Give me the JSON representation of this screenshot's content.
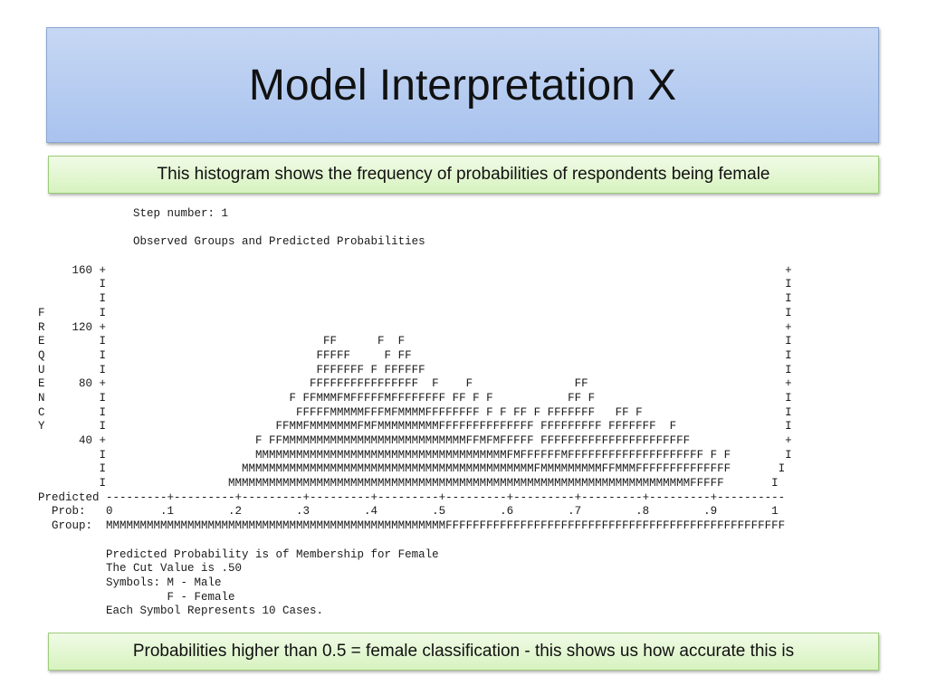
{
  "slide": {
    "title": "Model Interpretation X",
    "top_note": "This histogram shows the frequency of probabilities of respondents being female",
    "bottom_note": "Probabilities higher than 0.5 = female classification - this shows us how accurate this is"
  },
  "output": {
    "lines": [
      "              Step number: 1",
      "",
      "              Observed Groups and Predicted Probabilities",
      "",
      "     160 +                                                                                                    +",
      "         I                                                                                                    I",
      "         I                                                                                                    I",
      "F        I                                                                                                    I",
      "R    120 +                                                                                                    +",
      "E        I                                FF      F  F                                                        I",
      "Q        I                               FFFFF     F FF                                                       I",
      "U        I                               FFFFFFF F FFFFFF                                                     I",
      "E     80 +                              FFFFFFFFFFFFFFFF  F    F               FF                             +",
      "N        I                           F FFMMMFMFFFFFMFFFFFFFF FF F F           FF F                            I",
      "C        I                            FFFFFMMMMMFFFMFMMMMFFFFFFFF F F FF F FFFFFFF   FF F                     I",
      "Y        I                         FFMMFMMMMMMMFMFMMMMMMMMMFFFFFFFFFFFFFF FFFFFFFFF FFFFFFF  F                I",
      "      40 +                      F FFMMMMMMMMMMMMMMMMMMMMMMMMMMMFFMFMFFFFF FFFFFFFFFFFFFFFFFFFFFF              +",
      "         I                      MMMMMMMMMMMMMMMMMMMMMMMMMMMMMMMMMMMMMFMFFFFFFMFFFFFFFFFFFFFFFFFFFF F F        I",
      "         I                    MMMMMMMMMMMMMMMMMMMMMMMMMMMMMMMMMMMMMMMMMMMFMMMMMMMMMFFMMMFFFFFFFFFFFFFF       I",
      "         I                  MMMMMMMMMMMMMMMMMMMMMMMMMMMMMMMMMMMMMMMMMMMMMMMMMMMMMMMMMMMMMMMMMMMMFFFFF       I",
      "Predicted ---------+---------+---------+---------+---------+---------+---------+---------+---------+----------",
      "  Prob:   0       .1        .2        .3        .4        .5        .6        .7        .8        .9        1",
      "  Group:  MMMMMMMMMMMMMMMMMMMMMMMMMMMMMMMMMMMMMMMMMMMMMMMMMMFFFFFFFFFFFFFFFFFFFFFFFFFFFFFFFFFFFFFFFFFFFFFFFFFF",
      "",
      "          Predicted Probability is of Membership for Female",
      "          The Cut Value is .50",
      "          Symbols: M - Male",
      "                   F - Female",
      "          Each Symbol Represents 10 Cases."
    ]
  }
}
